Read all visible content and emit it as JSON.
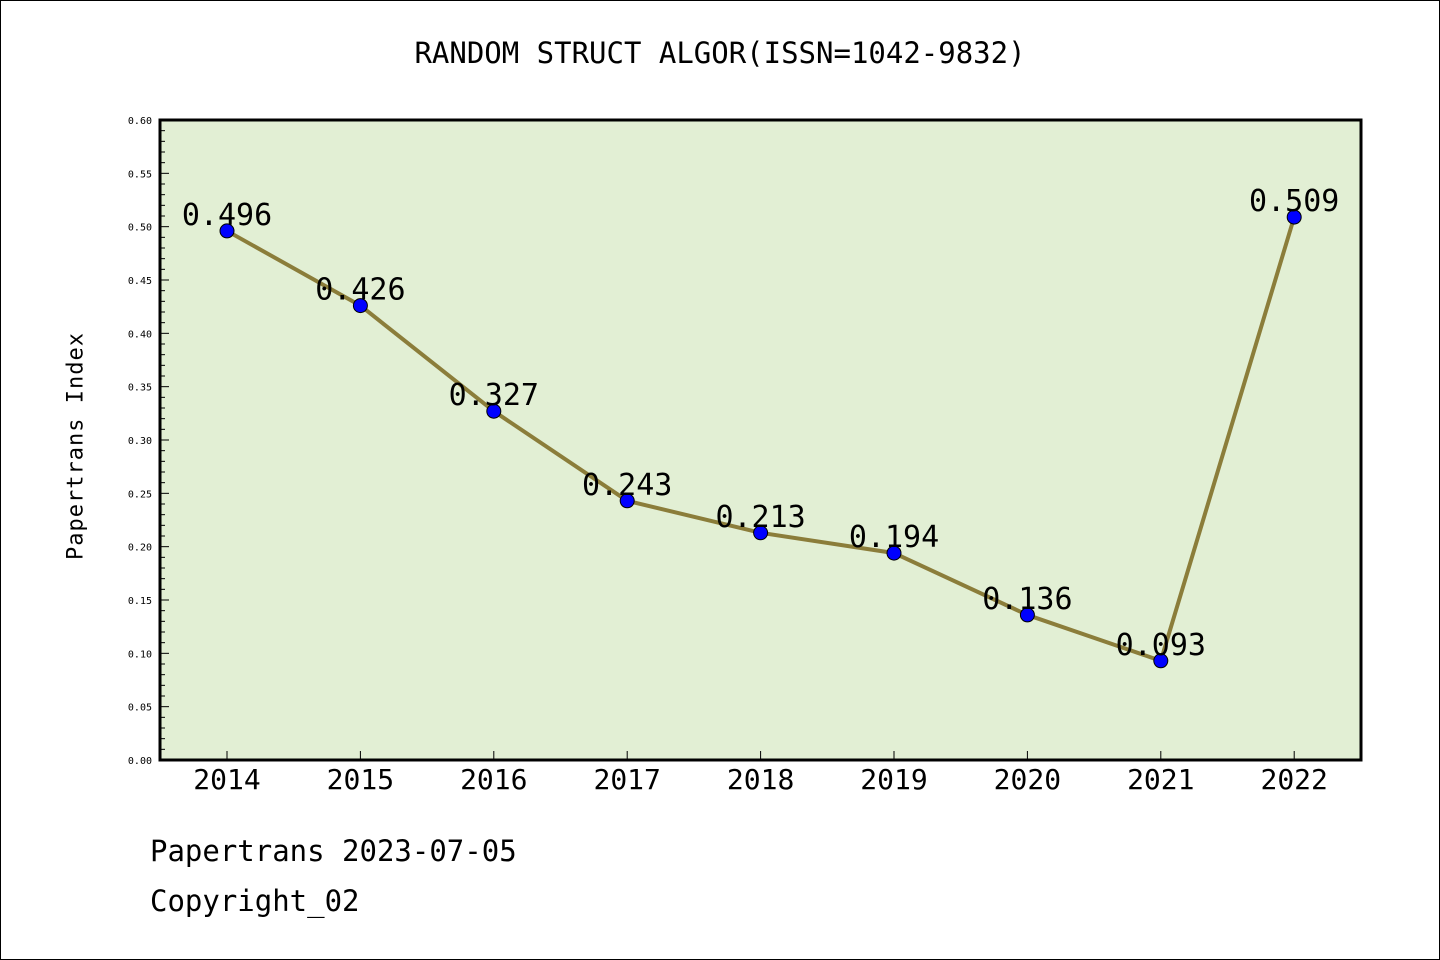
{
  "chart_data": {
    "type": "line",
    "title": "RANDOM STRUCT ALGOR(ISSN=1042-9832)",
    "xlabel": "",
    "ylabel": "Papertrans Index",
    "categories": [
      "2014",
      "2015",
      "2016",
      "2017",
      "2018",
      "2019",
      "2020",
      "2021",
      "2022"
    ],
    "values": [
      0.496,
      0.426,
      0.327,
      0.243,
      0.213,
      0.194,
      0.136,
      0.093,
      0.509
    ],
    "data_labels": [
      "0.496",
      "0.426",
      "0.327",
      "0.243",
      "0.213",
      "0.194",
      "0.136",
      "0.093",
      "0.509"
    ],
    "ylim": [
      0,
      0.6
    ],
    "yticks": [
      "0.00",
      "0.05",
      "0.10",
      "0.15",
      "0.20",
      "0.25",
      "0.30",
      "0.35",
      "0.40",
      "0.45",
      "0.50",
      "0.55",
      "0.60"
    ],
    "grid": false,
    "legend": "none",
    "colors": {
      "plot_background": "#e2efd4",
      "line": "#8b7d3a",
      "marker": "#0000ff"
    }
  },
  "footer": {
    "date_line": "Papertrans 2023-07-05",
    "copyright": "Copyright_02"
  }
}
